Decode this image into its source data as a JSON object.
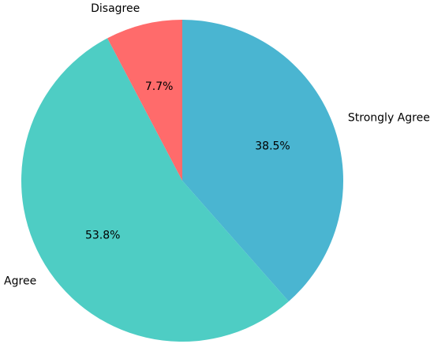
{
  "chart_data": {
    "type": "pie",
    "categories": [
      "Strongly Agree",
      "Agree",
      "Disagree"
    ],
    "values": [
      38.5,
      53.8,
      7.7
    ],
    "value_labels": [
      "38.5%",
      "53.8%",
      "7.7%"
    ],
    "colors": [
      "#4ab5d1",
      "#4ecdc4",
      "#ff6b6b"
    ]
  }
}
